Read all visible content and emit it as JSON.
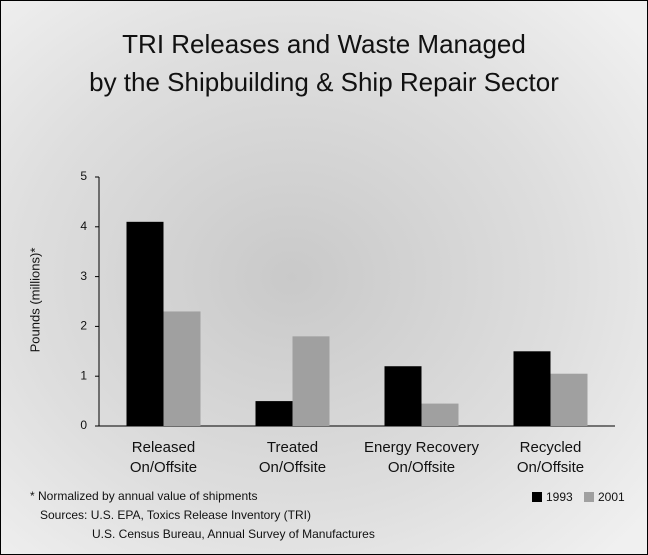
{
  "chart_data": {
    "type": "bar",
    "title": [
      "TRI Releases and Waste Managed",
      "by the Shipbuilding & Ship Repair Sector"
    ],
    "y_label": "Pounds (millions)*",
    "categories": [
      [
        "Released",
        "On/Offsite"
      ],
      [
        "Treated",
        "On/Offsite"
      ],
      [
        "Energy Recovery",
        "On/Offsite"
      ],
      [
        "Recycled",
        "On/Offsite"
      ]
    ],
    "series": [
      {
        "name": "1993",
        "color": "#000000",
        "values": [
          4.1,
          0.5,
          1.2,
          1.5
        ]
      },
      {
        "name": "2001",
        "color": "#a0a0a0",
        "values": [
          2.3,
          1.8,
          0.45,
          1.05
        ]
      }
    ],
    "ylim": [
      0,
      5
    ],
    "yticks": [
      0,
      1,
      2,
      3,
      4,
      5
    ],
    "legend": "bottom-right",
    "notes": [
      "* Normalized by annual value of shipments",
      "Sources: U.S. EPA, Toxics Release Inventory (TRI)",
      "U.S. Census Bureau, Annual Survey of Manufactures"
    ]
  }
}
